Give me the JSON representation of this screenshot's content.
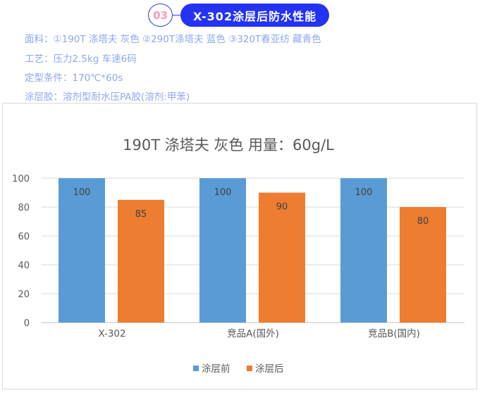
{
  "header": {
    "number": "03",
    "title": "X-302涂层后防水性能"
  },
  "info": [
    "面料：①190T 涤塔夫 灰色  ②290T涤塔夫 蓝色  ③320T春亚纺 藏青色",
    "工艺：压力2.5kg 车速6码",
    "定型条件：170℃*60s",
    "涂层胶：溶剂型耐水压PA胶(溶剂:甲苯)"
  ],
  "chart_data": {
    "type": "bar",
    "title": "190T 涤塔夫 灰色  用量：60g/L",
    "categories": [
      "X-302",
      "竞品A(国外)",
      "竞品B(国内)"
    ],
    "series": [
      {
        "name": "涂层前",
        "color": "#5b9bd5",
        "values": [
          100,
          100,
          100
        ]
      },
      {
        "name": "涂层后",
        "color": "#ed7d31",
        "values": [
          85,
          90,
          80
        ]
      }
    ],
    "ylim": [
      0,
      100
    ],
    "yticks": [
      0,
      20,
      40,
      60,
      80,
      100
    ],
    "grid": true,
    "legend": "bottom"
  }
}
